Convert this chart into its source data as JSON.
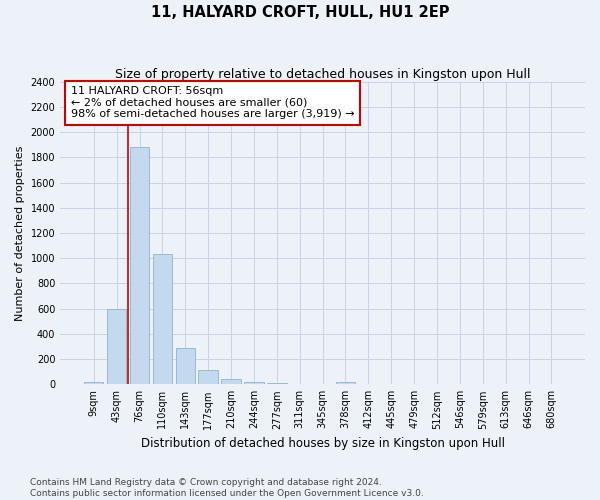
{
  "title": "11, HALYARD CROFT, HULL, HU1 2EP",
  "subtitle": "Size of property relative to detached houses in Kingston upon Hull",
  "xlabel": "Distribution of detached houses by size in Kingston upon Hull",
  "ylabel": "Number of detached properties",
  "bin_labels": [
    "9sqm",
    "43sqm",
    "76sqm",
    "110sqm",
    "143sqm",
    "177sqm",
    "210sqm",
    "244sqm",
    "277sqm",
    "311sqm",
    "345sqm",
    "378sqm",
    "412sqm",
    "445sqm",
    "479sqm",
    "512sqm",
    "546sqm",
    "579sqm",
    "613sqm",
    "646sqm",
    "680sqm"
  ],
  "bar_heights": [
    15,
    600,
    1880,
    1030,
    285,
    110,
    45,
    20,
    10,
    5,
    2,
    20,
    0,
    0,
    0,
    0,
    0,
    0,
    0,
    0,
    0
  ],
  "bar_color": "#c5d9ee",
  "bar_edgecolor": "#8ab4d4",
  "grid_color": "#c8d4e8",
  "background_color": "#edf2f8",
  "red_line_color": "#cc0000",
  "annotation_text": "11 HALYARD CROFT: 56sqm\n← 2% of detached houses are smaller (60)\n98% of semi-detached houses are larger (3,919) →",
  "annotation_box_facecolor": "#ffffff",
  "annotation_box_edgecolor": "#cc0000",
  "ylim": [
    0,
    2400
  ],
  "yticks": [
    0,
    200,
    400,
    600,
    800,
    1000,
    1200,
    1400,
    1600,
    1800,
    2000,
    2200,
    2400
  ],
  "footer_line1": "Contains HM Land Registry data © Crown copyright and database right 2024.",
  "footer_line2": "Contains public sector information licensed under the Open Government Licence v3.0.",
  "title_fontsize": 10.5,
  "subtitle_fontsize": 9,
  "xlabel_fontsize": 8.5,
  "ylabel_fontsize": 8,
  "tick_fontsize": 7,
  "annotation_fontsize": 8,
  "footer_fontsize": 6.5,
  "red_line_x": 1.5
}
